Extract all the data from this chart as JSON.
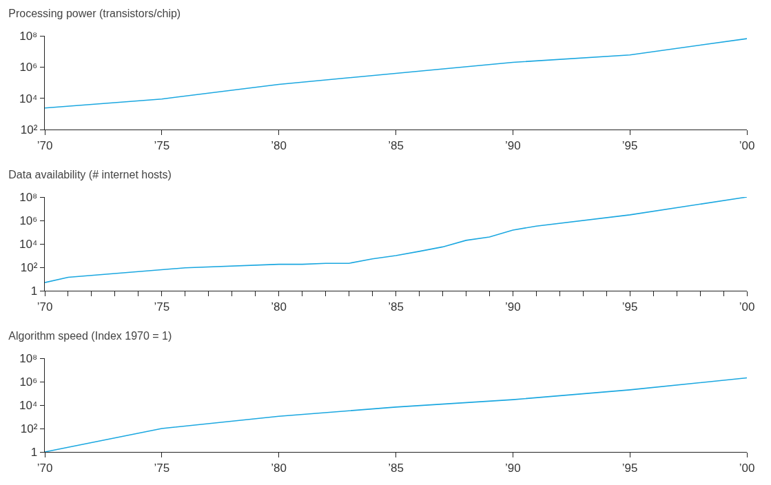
{
  "chart_data": [
    {
      "type": "line",
      "title": "Processing power (transistors/chip)",
      "log": "y",
      "color": "#1aa7e0",
      "marker": "none",
      "line_style": "solid",
      "grid": false,
      "x": [
        1970,
        1975,
        1980,
        1990,
        1995,
        2000
      ],
      "values": [
        2400,
        9000,
        78000,
        2000000,
        6000000,
        66000000
      ],
      "xlim": [
        1970,
        2000
      ],
      "xticks": [
        {
          "value": 1970,
          "label": "’70"
        },
        {
          "value": 1975,
          "label": "’75"
        },
        {
          "value": 1980,
          "label": "’80"
        },
        {
          "value": 1985,
          "label": "’85"
        },
        {
          "value": 1990,
          "label": "’90"
        },
        {
          "value": 1995,
          "label": "’95"
        },
        {
          "value": 2000,
          "label": "’00"
        }
      ],
      "ylim": [
        100,
        100000000
      ],
      "yticks": [
        {
          "value": 100,
          "label": "10²"
        },
        {
          "value": 10000,
          "label": "10⁴"
        },
        {
          "value": 1000000,
          "label": "10⁶"
        },
        {
          "value": 100000000,
          "label": "10⁸"
        }
      ]
    },
    {
      "type": "line",
      "title": "Data availability (# internet hosts)",
      "log": "y",
      "color": "#1aa7e0",
      "marker": "none",
      "line_style": "solid",
      "grid": false,
      "x": [
        1970,
        1971,
        1976,
        1980,
        1981,
        1982,
        1983,
        1984,
        1985,
        1986,
        1987,
        1988,
        1989,
        1990,
        1991,
        1995,
        2000
      ],
      "values": [
        5,
        14,
        90,
        180,
        180,
        220,
        220,
        530,
        1000,
        2300,
        5500,
        20000,
        39000,
        150000,
        330000,
        3000000,
        100000000
      ],
      "xlim": [
        1970,
        2000
      ],
      "xticks": [
        {
          "value": 1970,
          "label": "’70"
        },
        {
          "value": 1971,
          "label": null
        },
        {
          "value": 1972,
          "label": null
        },
        {
          "value": 1973,
          "label": null
        },
        {
          "value": 1974,
          "label": null
        },
        {
          "value": 1975,
          "label": "’75"
        },
        {
          "value": 1976,
          "label": null
        },
        {
          "value": 1977,
          "label": null
        },
        {
          "value": 1978,
          "label": null
        },
        {
          "value": 1979,
          "label": null
        },
        {
          "value": 1980,
          "label": "’80"
        },
        {
          "value": 1981,
          "label": null
        },
        {
          "value": 1982,
          "label": null
        },
        {
          "value": 1983,
          "label": null
        },
        {
          "value": 1984,
          "label": null
        },
        {
          "value": 1985,
          "label": "’85"
        },
        {
          "value": 1986,
          "label": null
        },
        {
          "value": 1987,
          "label": null
        },
        {
          "value": 1988,
          "label": null
        },
        {
          "value": 1989,
          "label": null
        },
        {
          "value": 1990,
          "label": "’90"
        },
        {
          "value": 1991,
          "label": null
        },
        {
          "value": 1992,
          "label": null
        },
        {
          "value": 1993,
          "label": null
        },
        {
          "value": 1994,
          "label": null
        },
        {
          "value": 1995,
          "label": "’95"
        },
        {
          "value": 1996,
          "label": null
        },
        {
          "value": 1997,
          "label": null
        },
        {
          "value": 1998,
          "label": null
        },
        {
          "value": 1999,
          "label": null
        },
        {
          "value": 2000,
          "label": "’00"
        }
      ],
      "ylim": [
        1,
        100000000
      ],
      "yticks": [
        1,
        {
          "value": 100,
          "label": "10²"
        },
        {
          "value": 10000,
          "label": "10⁴"
        },
        {
          "value": 1000000,
          "label": "10⁶"
        },
        {
          "value": 100000000,
          "label": "10⁸"
        }
      ]
    },
    {
      "type": "line",
      "title": "Algorithm speed (Index 1970 = 1)",
      "log": "y",
      "color": "#1aa7e0",
      "marker": "none",
      "line_style": "solid",
      "grid": false,
      "x": [
        1970,
        1975,
        1980,
        1985,
        1990,
        1995,
        2000
      ],
      "values": [
        1,
        100,
        1100,
        6800,
        29000,
        200000,
        2100000
      ],
      "xlim": [
        1970,
        2000
      ],
      "xticks": [
        {
          "value": 1970,
          "label": "’70"
        },
        {
          "value": 1975,
          "label": "’75"
        },
        {
          "value": 1980,
          "label": "’80"
        },
        {
          "value": 1985,
          "label": "’85"
        },
        {
          "value": 1990,
          "label": "’90"
        },
        {
          "value": 1995,
          "label": "’95"
        },
        {
          "value": 2000,
          "label": "’00"
        }
      ],
      "ylim": [
        1,
        100000000
      ],
      "yticks": [
        1,
        {
          "value": 100,
          "label": "10²"
        },
        {
          "value": 10000,
          "label": "10⁴"
        },
        {
          "value": 1000000,
          "label": "10⁶"
        },
        {
          "value": 100000000,
          "label": "10⁸"
        }
      ]
    }
  ]
}
